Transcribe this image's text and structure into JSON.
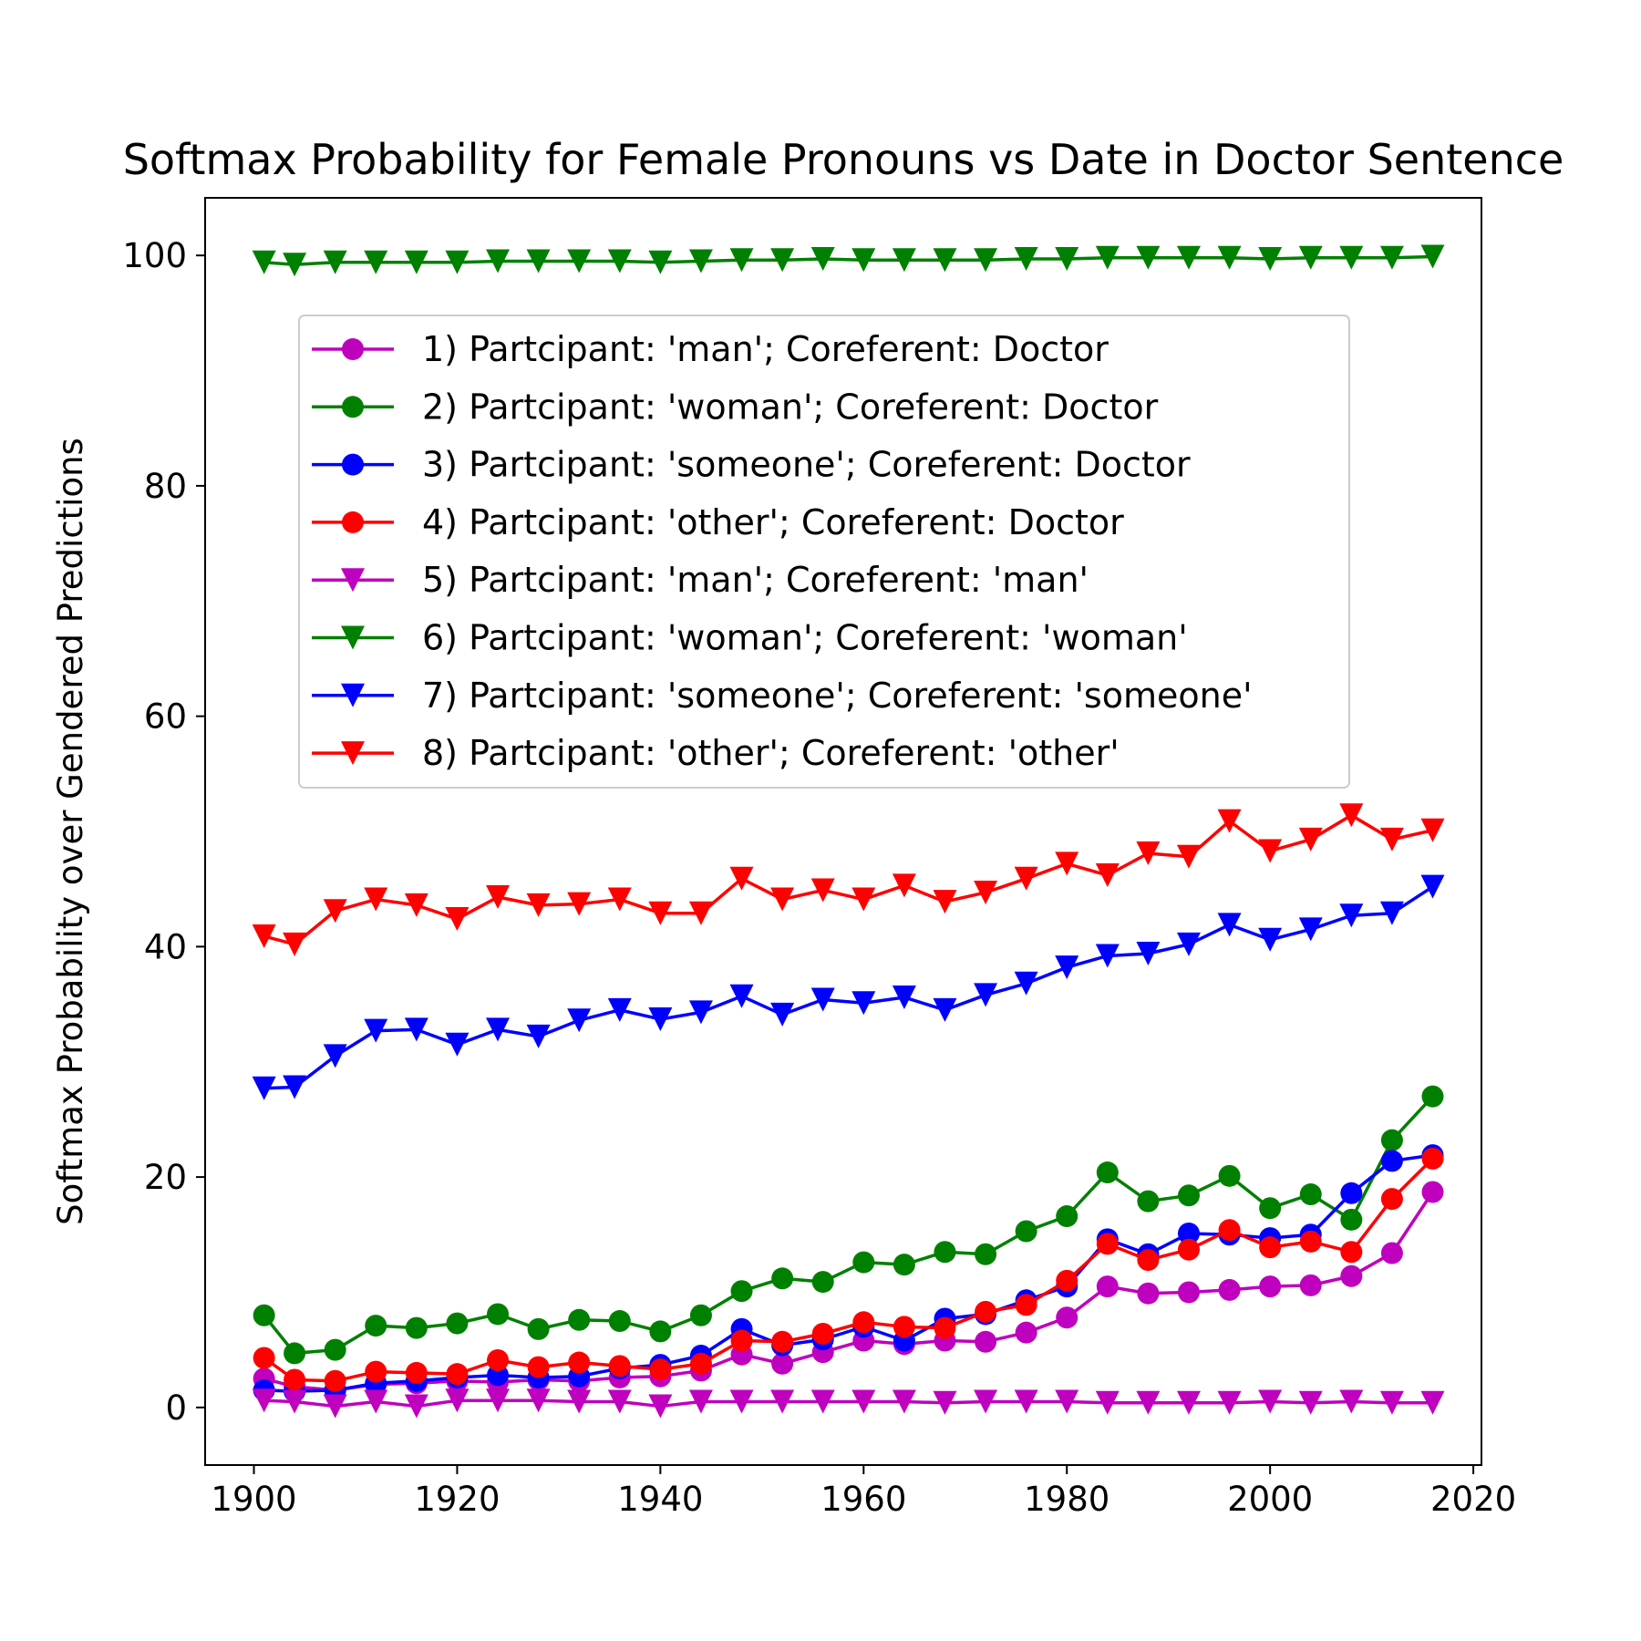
{
  "chart_data": {
    "type": "line",
    "title": "Softmax Probability for Female Pronouns vs Date in Doctor Sentence",
    "xlabel": "",
    "ylabel": "Softmax Probability over Gendered Predictions",
    "xlim": [
      1895.2,
      2020.8
    ],
    "ylim": [
      -5,
      105
    ],
    "xticks": [
      1900,
      1920,
      1940,
      1960,
      1980,
      2000,
      2020
    ],
    "yticks": [
      0,
      20,
      40,
      60,
      80,
      100
    ],
    "grid": false,
    "legend_position": "upper-center",
    "x": [
      1901,
      1904,
      1908,
      1912,
      1916,
      1920,
      1924,
      1928,
      1932,
      1936,
      1940,
      1944,
      1948,
      1952,
      1956,
      1960,
      1964,
      1968,
      1972,
      1976,
      1980,
      1984,
      1988,
      1992,
      1996,
      2000,
      2004,
      2008,
      2012,
      2016
    ],
    "series": [
      {
        "name": "1) Partcipant: 'man'; Coreferent: Doctor",
        "color": "#bf00bf",
        "marker": "circle",
        "values": [
          2.5,
          1.8,
          1.5,
          2.0,
          2.1,
          2.3,
          2.2,
          2.4,
          2.3,
          2.6,
          2.7,
          3.2,
          4.6,
          3.8,
          4.8,
          5.8,
          5.5,
          5.8,
          5.7,
          6.5,
          7.8,
          10.5,
          9.9,
          10.0,
          10.2,
          10.5,
          10.6,
          11.4,
          13.4,
          18.7
        ]
      },
      {
        "name": "2) Partcipant: 'woman'; Coreferent: Doctor",
        "color": "#008000",
        "marker": "circle",
        "values": [
          8.0,
          4.7,
          5.0,
          7.1,
          6.9,
          7.3,
          8.1,
          6.8,
          7.6,
          7.5,
          6.6,
          8.0,
          10.1,
          11.2,
          10.9,
          12.6,
          12.4,
          13.5,
          13.3,
          15.3,
          16.6,
          20.4,
          17.9,
          18.4,
          20.1,
          17.3,
          18.5,
          16.3,
          23.2,
          27.0
        ]
      },
      {
        "name": "3) Partcipant: 'someone'; Coreferent: Doctor",
        "color": "#0000ff",
        "marker": "circle",
        "values": [
          1.5,
          1.4,
          1.5,
          2.1,
          2.3,
          2.6,
          2.8,
          2.6,
          2.7,
          3.4,
          3.7,
          4.5,
          6.8,
          5.4,
          5.9,
          7.0,
          5.8,
          7.7,
          8.1,
          9.3,
          10.5,
          14.6,
          13.3,
          15.1,
          15.0,
          14.7,
          15.0,
          18.6,
          21.4,
          21.9
        ]
      },
      {
        "name": "4) Partcipant: 'other'; Coreferent: Doctor",
        "color": "#ff0000",
        "marker": "circle",
        "values": [
          4.3,
          2.4,
          2.3,
          3.1,
          3.0,
          2.9,
          4.1,
          3.5,
          3.9,
          3.6,
          3.3,
          3.8,
          5.8,
          5.7,
          6.4,
          7.4,
          7.0,
          6.9,
          8.3,
          8.9,
          11.0,
          14.2,
          12.8,
          13.7,
          15.4,
          13.9,
          14.4,
          13.5,
          18.1,
          21.6
        ]
      },
      {
        "name": "5) Partcipant: 'man'; Coreferent: 'man'",
        "color": "#bf00bf",
        "marker": "triangle-down",
        "values": [
          0.6,
          0.5,
          0.1,
          0.5,
          0.1,
          0.6,
          0.6,
          0.6,
          0.5,
          0.5,
          0.1,
          0.5,
          0.5,
          0.5,
          0.5,
          0.5,
          0.5,
          0.4,
          0.5,
          0.5,
          0.5,
          0.4,
          0.4,
          0.4,
          0.4,
          0.5,
          0.4,
          0.5,
          0.4,
          0.4
        ]
      },
      {
        "name": "6) Partcipant: 'woman'; Coreferent: 'woman'",
        "color": "#008000",
        "marker": "triangle-down",
        "values": [
          99.4,
          99.2,
          99.4,
          99.4,
          99.4,
          99.4,
          99.5,
          99.5,
          99.5,
          99.5,
          99.4,
          99.5,
          99.6,
          99.6,
          99.7,
          99.6,
          99.6,
          99.6,
          99.6,
          99.7,
          99.7,
          99.8,
          99.8,
          99.8,
          99.8,
          99.7,
          99.8,
          99.8,
          99.8,
          99.9
        ]
      },
      {
        "name": "7) Partcipant: 'someone'; Coreferent: 'someone'",
        "color": "#0000ff",
        "marker": "triangle-down",
        "values": [
          27.7,
          27.8,
          30.5,
          32.7,
          32.8,
          31.5,
          32.8,
          32.2,
          33.6,
          34.5,
          33.7,
          34.3,
          35.7,
          34.1,
          35.4,
          35.1,
          35.6,
          34.5,
          35.8,
          36.8,
          38.2,
          39.2,
          39.4,
          40.2,
          41.9,
          40.6,
          41.5,
          42.7,
          42.9,
          45.2
        ]
      },
      {
        "name": "8) Partcipant: 'other'; Coreferent: 'other'",
        "color": "#ff0000",
        "marker": "triangle-down",
        "values": [
          40.9,
          40.2,
          43.1,
          44.1,
          43.6,
          42.4,
          44.3,
          43.6,
          43.7,
          44.1,
          42.9,
          42.9,
          45.9,
          44.1,
          44.9,
          44.1,
          45.3,
          43.9,
          44.7,
          45.9,
          47.2,
          46.2,
          48.1,
          47.8,
          50.9,
          48.3,
          49.3,
          51.4,
          49.3,
          50.1
        ]
      }
    ]
  }
}
